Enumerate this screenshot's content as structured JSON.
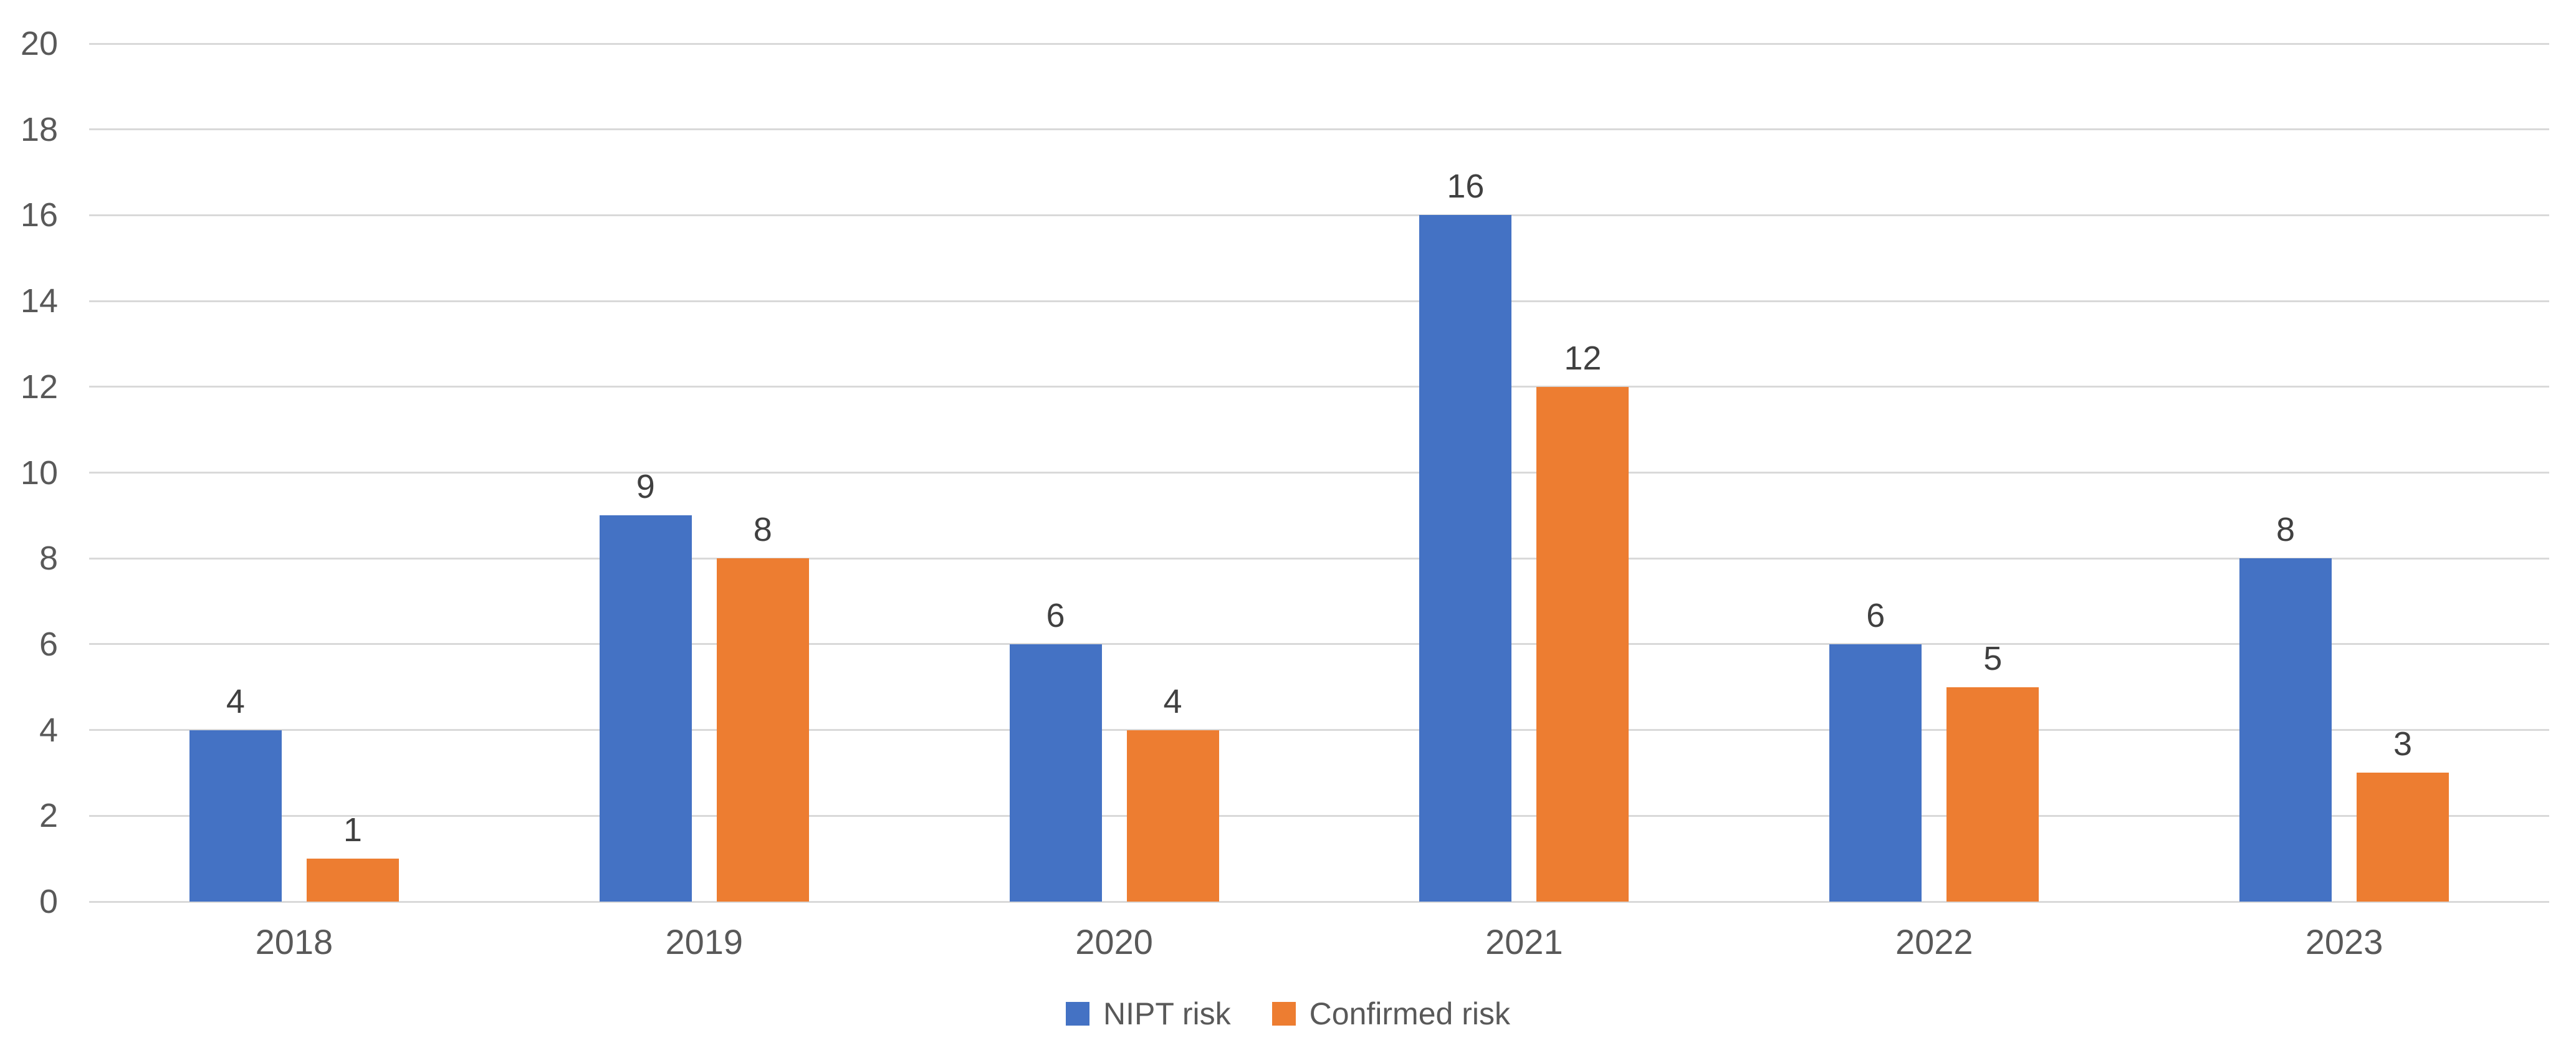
{
  "chart_data": {
    "type": "bar",
    "title": "",
    "xlabel": "",
    "ylabel": "",
    "categories": [
      "2018",
      "2019",
      "2020",
      "2021",
      "2022",
      "2023"
    ],
    "series": [
      {
        "name": "NIPT risk",
        "color": "#4472C4",
        "values": [
          4,
          9,
          6,
          16,
          6,
          8
        ]
      },
      {
        "name": "Confirmed risk",
        "color": "#ED7D31",
        "values": [
          1,
          8,
          4,
          12,
          5,
          3
        ]
      }
    ],
    "ylim": [
      0,
      20
    ],
    "yticks": [
      0,
      2,
      4,
      6,
      8,
      10,
      12,
      14,
      16,
      18,
      20
    ],
    "grid": "horizontal",
    "data_labels": true,
    "legend_position": "bottom"
  },
  "colors": {
    "gridline": "#D9D9D9",
    "axis_label": "#595959",
    "data_label": "#404040",
    "background": "#FFFFFF"
  }
}
